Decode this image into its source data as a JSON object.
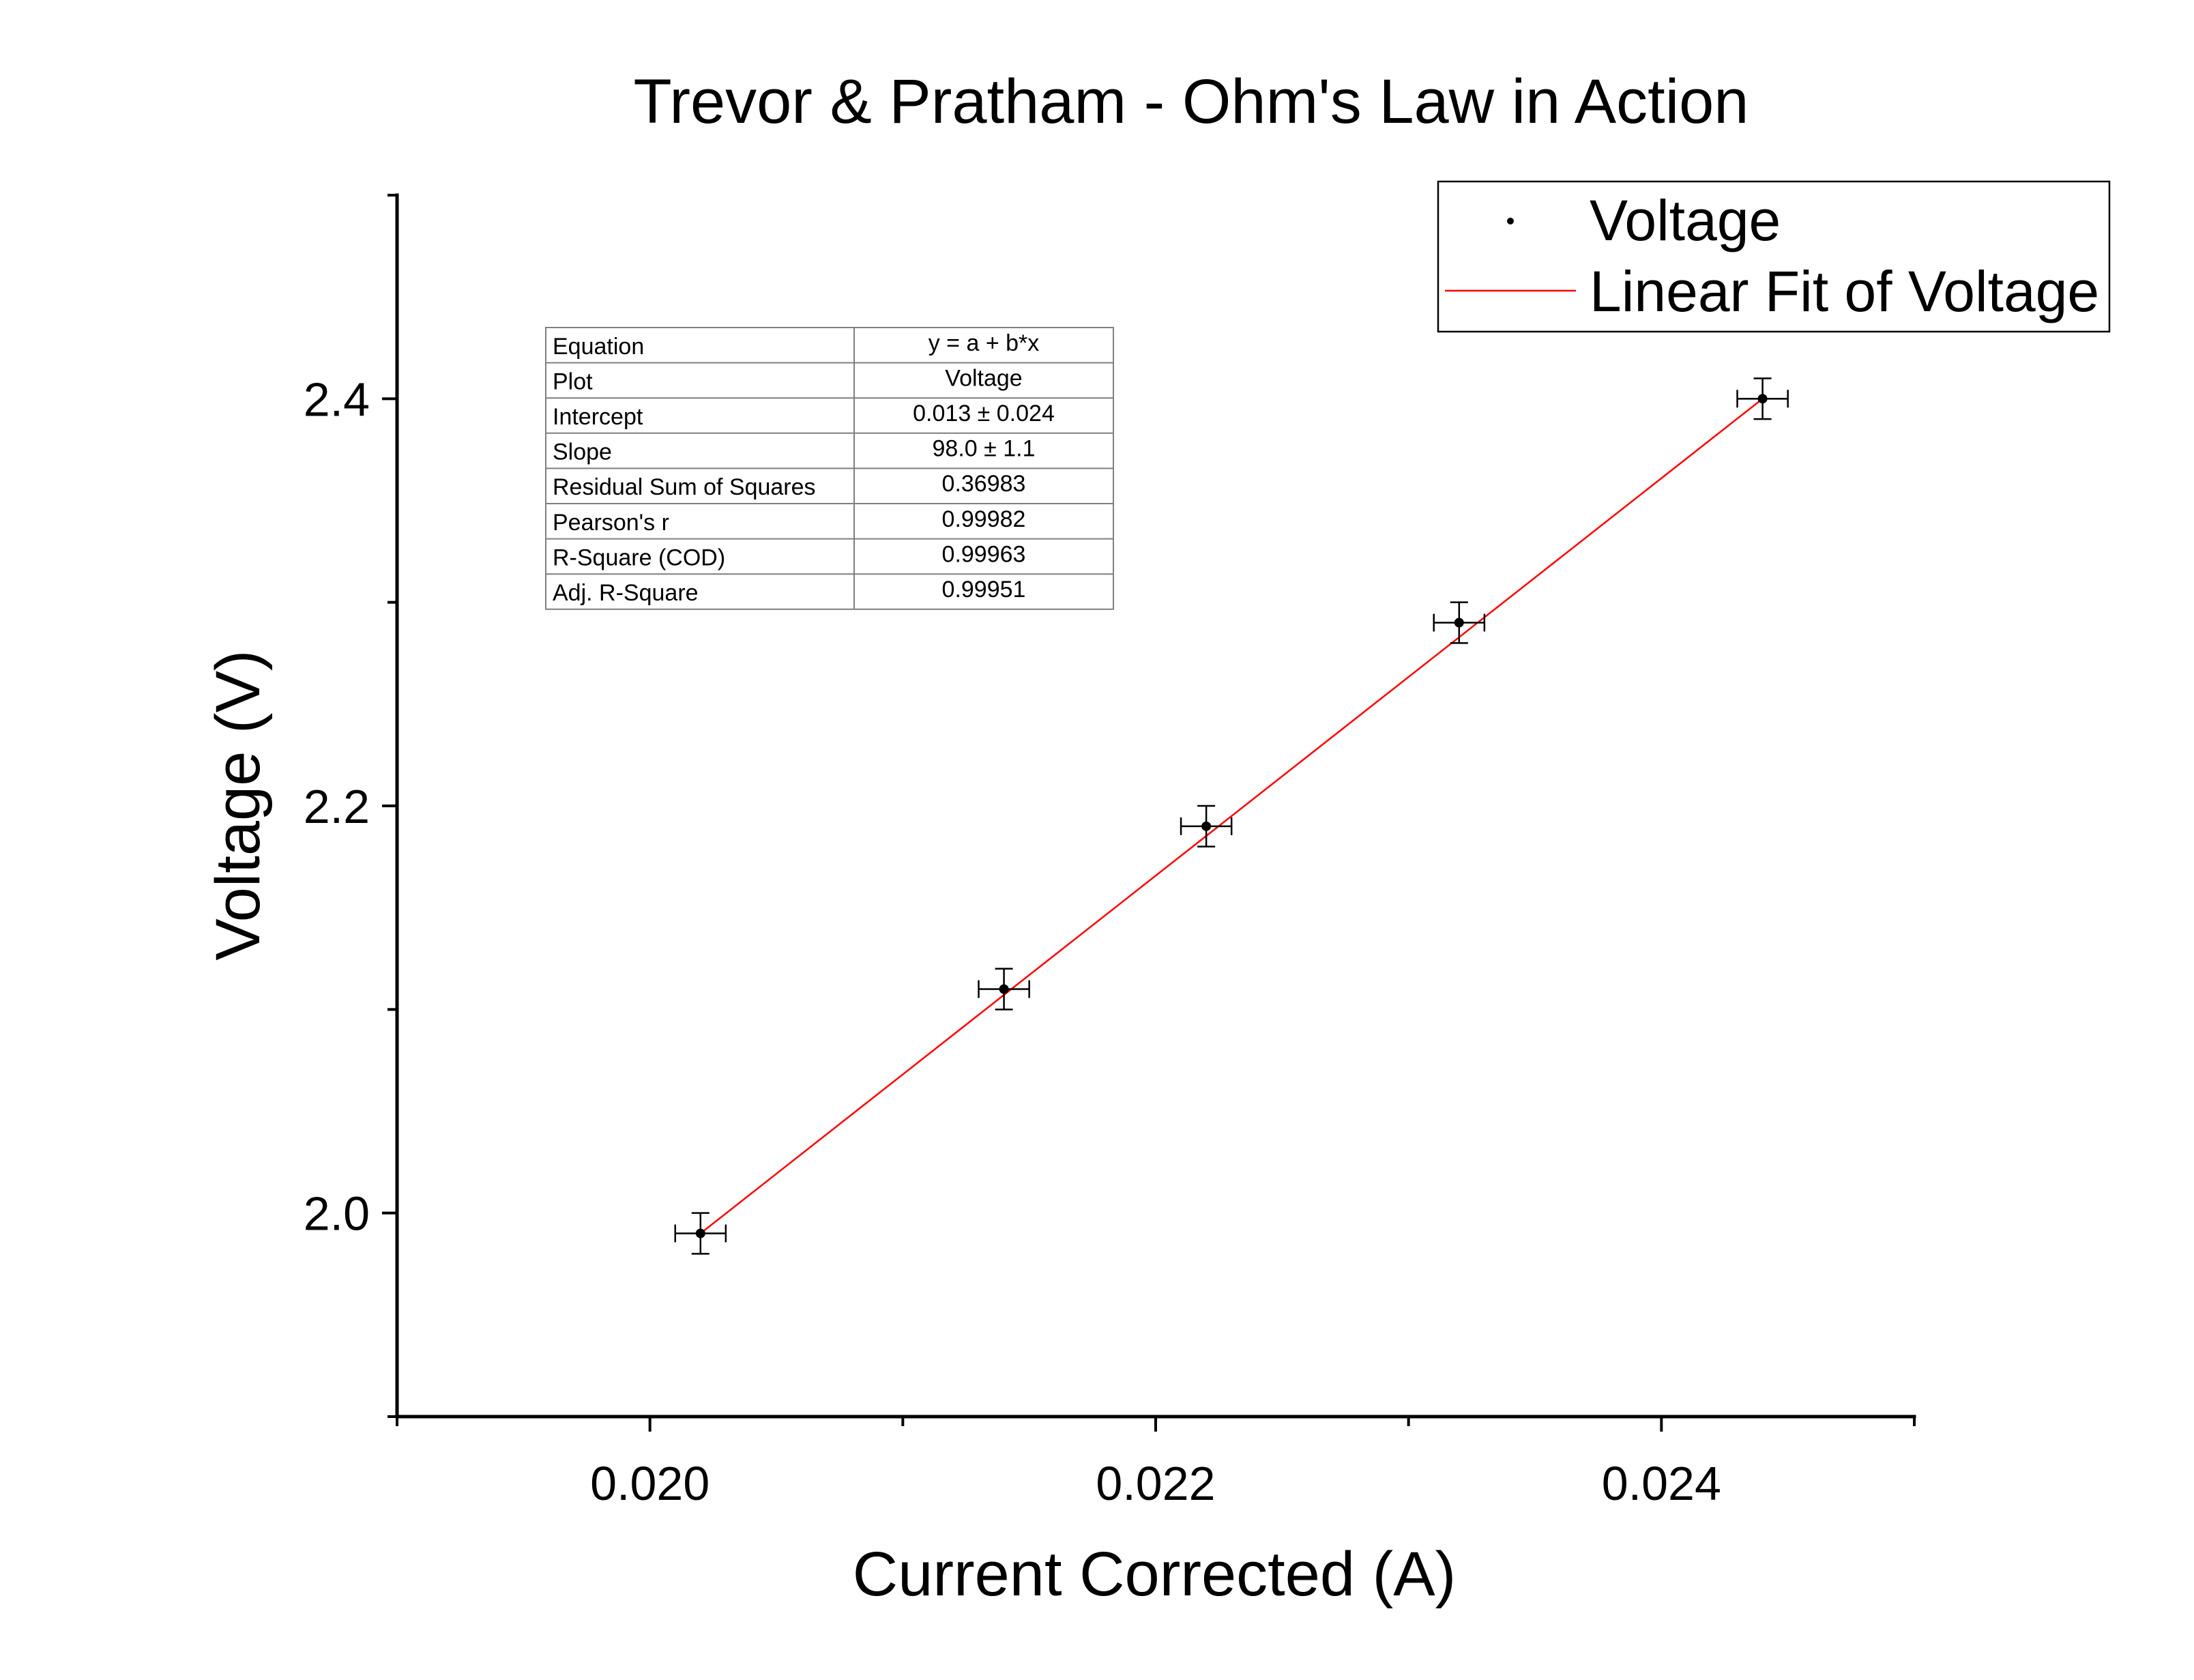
{
  "chart_data": {
    "type": "scatter",
    "title": "Trevor & Pratham - Ohm's Law in Action",
    "xlabel": "Current Corrected (A)",
    "ylabel": "Voltage (V)",
    "xlim": [
      0.019,
      0.025
    ],
    "ylim": [
      1.9,
      2.5
    ],
    "x_ticks_major": [
      0.02,
      0.022,
      0.024
    ],
    "x_tick_labels": [
      "0.020",
      "0.022",
      "0.024"
    ],
    "x_ticks_minor": [
      0.019,
      0.021,
      0.023,
      0.025
    ],
    "y_ticks_major": [
      2.0,
      2.2,
      2.4
    ],
    "y_tick_labels": [
      "2.0",
      "2.2",
      "2.4"
    ],
    "y_ticks_minor": [
      1.9,
      2.1,
      2.3,
      2.5
    ],
    "grid": false,
    "legend_position": "top-right",
    "series": [
      {
        "name": "Voltage",
        "kind": "points",
        "color": "#000000",
        "x": [
          0.0202,
          0.0214,
          0.0222,
          0.0232,
          0.0244
        ],
        "y": [
          1.99,
          2.11,
          2.19,
          2.29,
          2.4
        ],
        "x_err": [
          0.0001,
          0.0001,
          0.0001,
          0.0001,
          0.0001
        ],
        "y_err": [
          0.01,
          0.01,
          0.01,
          0.01,
          0.01
        ]
      },
      {
        "name": "Linear Fit of Voltage",
        "kind": "line",
        "color": "#ff0000",
        "x": [
          0.0202,
          0.0244
        ],
        "y": [
          1.99,
          2.4
        ]
      }
    ],
    "stats_table": {
      "rows": [
        {
          "label": "Equation",
          "value": "y = a + b*x"
        },
        {
          "label": "Plot",
          "value": "Voltage"
        },
        {
          "label": "Intercept",
          "value": "0.013 ± 0.024"
        },
        {
          "label": "Slope",
          "value": "98.0 ± 1.1"
        },
        {
          "label": "Residual Sum of Squares",
          "value": "0.36983"
        },
        {
          "label": "Pearson's r",
          "value": "0.99982"
        },
        {
          "label": "R-Square (COD)",
          "value": "0.99963"
        },
        {
          "label": "Adj. R-Square",
          "value": "0.99951"
        }
      ]
    }
  }
}
